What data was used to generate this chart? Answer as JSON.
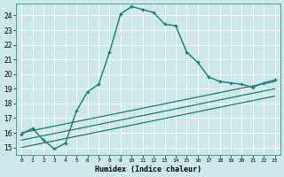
{
  "xlabel": "Humidex (Indice chaleur)",
  "ylabel": "",
  "bg_color": "#cce8e8",
  "grid_color": "#aed4d4",
  "line_color": "#1a7a6e",
  "xlim": [
    -0.5,
    23.5
  ],
  "ylim": [
    14.5,
    24.8
  ],
  "xticks": [
    0,
    1,
    2,
    3,
    4,
    5,
    6,
    7,
    8,
    9,
    10,
    11,
    12,
    13,
    14,
    15,
    16,
    17,
    18,
    19,
    20,
    21,
    22,
    23
  ],
  "yticks": [
    15,
    16,
    17,
    18,
    19,
    20,
    21,
    22,
    23,
    24
  ],
  "line1_x": [
    0,
    1,
    2,
    3,
    4,
    5,
    6,
    7,
    8,
    9,
    10,
    11,
    12,
    13,
    14,
    15,
    16,
    17,
    18,
    19,
    20,
    21,
    22,
    23
  ],
  "line1_y": [
    15.9,
    16.3,
    15.5,
    14.9,
    15.3,
    17.5,
    18.8,
    19.3,
    21.5,
    24.1,
    24.6,
    24.4,
    24.2,
    23.4,
    23.3,
    21.5,
    20.8,
    19.8,
    19.5,
    19.4,
    19.3,
    19.1,
    19.4,
    19.6
  ],
  "line2_x": [
    0,
    23
  ],
  "line2_y": [
    16.0,
    19.5
  ],
  "line3_x": [
    0,
    23
  ],
  "line3_y": [
    15.5,
    19.0
  ],
  "line4_x": [
    0,
    23
  ],
  "line4_y": [
    15.0,
    18.5
  ]
}
